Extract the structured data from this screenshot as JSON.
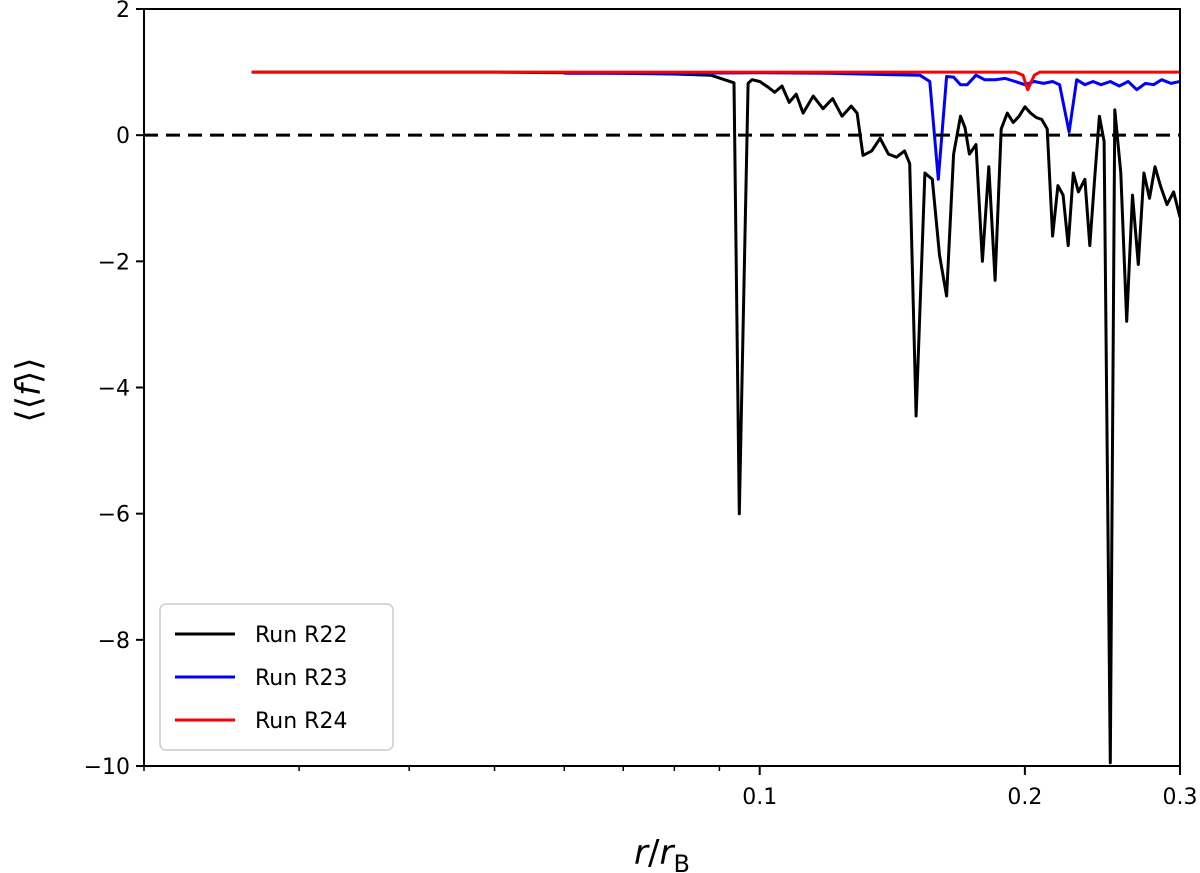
{
  "chart_data": {
    "type": "line",
    "xscale": "log",
    "xlim": [
      0.02,
      0.3
    ],
    "ylim": [
      -10,
      2
    ],
    "xlabel": "r/r_B",
    "ylabel": "⟨⟨f⟩⟩",
    "x_ticks": [
      {
        "value": 0.1,
        "label": "0.1"
      },
      {
        "value": 0.2,
        "label": "0.2"
      },
      {
        "value": 0.3,
        "label": "0.3"
      }
    ],
    "x_minor_ticks": [
      0.02,
      0.03,
      0.04,
      0.05,
      0.06,
      0.07,
      0.08,
      0.09
    ],
    "y_ticks": [
      {
        "value": 2,
        "label": "2"
      },
      {
        "value": 0,
        "label": "0"
      },
      {
        "value": -2,
        "label": "−2"
      },
      {
        "value": -4,
        "label": "−4"
      },
      {
        "value": -6,
        "label": "−6"
      },
      {
        "value": -8,
        "label": "−8"
      },
      {
        "value": -10,
        "label": "−10"
      }
    ],
    "reference_line": {
      "y": 0,
      "style": "dashed",
      "color": "#000000"
    },
    "legend": {
      "position": "lower-left"
    },
    "series": [
      {
        "name": "Run R22",
        "color": "#000000",
        "points": [
          [
            0.0265,
            1.0
          ],
          [
            0.05,
            1.0
          ],
          [
            0.07,
            0.98
          ],
          [
            0.08,
            0.97
          ],
          [
            0.088,
            0.95
          ],
          [
            0.0935,
            0.83
          ],
          [
            0.0948,
            -6.0
          ],
          [
            0.097,
            0.82
          ],
          [
            0.098,
            0.88
          ],
          [
            0.1,
            0.85
          ],
          [
            0.102,
            0.77
          ],
          [
            0.104,
            0.68
          ],
          [
            0.106,
            0.78
          ],
          [
            0.108,
            0.52
          ],
          [
            0.11,
            0.65
          ],
          [
            0.112,
            0.35
          ],
          [
            0.115,
            0.62
          ],
          [
            0.118,
            0.42
          ],
          [
            0.121,
            0.58
          ],
          [
            0.124,
            0.3
          ],
          [
            0.127,
            0.46
          ],
          [
            0.129,
            0.35
          ],
          [
            0.131,
            -0.32
          ],
          [
            0.134,
            -0.25
          ],
          [
            0.137,
            -0.05
          ],
          [
            0.14,
            -0.3
          ],
          [
            0.143,
            -0.35
          ],
          [
            0.146,
            -0.25
          ],
          [
            0.148,
            -0.45
          ],
          [
            0.1505,
            -4.45
          ],
          [
            0.154,
            -0.6
          ],
          [
            0.157,
            -0.7
          ],
          [
            0.16,
            -1.9
          ],
          [
            0.163,
            -2.55
          ],
          [
            0.166,
            -0.3
          ],
          [
            0.169,
            0.3
          ],
          [
            0.171,
            0.12
          ],
          [
            0.173,
            -0.3
          ],
          [
            0.176,
            -0.15
          ],
          [
            0.179,
            -2.0
          ],
          [
            0.182,
            -0.5
          ],
          [
            0.185,
            -2.3
          ],
          [
            0.188,
            0.1
          ],
          [
            0.191,
            0.35
          ],
          [
            0.194,
            0.2
          ],
          [
            0.197,
            0.3
          ],
          [
            0.2,
            0.45
          ],
          [
            0.203,
            0.35
          ],
          [
            0.206,
            0.28
          ],
          [
            0.209,
            0.25
          ],
          [
            0.212,
            0.1
          ],
          [
            0.215,
            -1.6
          ],
          [
            0.218,
            -0.8
          ],
          [
            0.221,
            -0.95
          ],
          [
            0.224,
            -1.75
          ],
          [
            0.227,
            -0.6
          ],
          [
            0.23,
            -0.9
          ],
          [
            0.234,
            -0.7
          ],
          [
            0.237,
            -1.75
          ],
          [
            0.24,
            -0.7
          ],
          [
            0.243,
            0.3
          ],
          [
            0.246,
            -0.1
          ],
          [
            0.25,
            -9.95
          ],
          [
            0.253,
            0.4
          ],
          [
            0.257,
            -0.6
          ],
          [
            0.261,
            -2.95
          ],
          [
            0.265,
            -0.95
          ],
          [
            0.269,
            -2.05
          ],
          [
            0.273,
            -0.6
          ],
          [
            0.277,
            -1.0
          ],
          [
            0.281,
            -0.5
          ],
          [
            0.285,
            -0.8
          ],
          [
            0.29,
            -1.1
          ],
          [
            0.295,
            -0.9
          ],
          [
            0.3,
            -1.3
          ]
        ]
      },
      {
        "name": "Run R23",
        "color": "#0000ff",
        "points": [
          [
            0.06,
            0.98
          ],
          [
            0.08,
            0.98
          ],
          [
            0.1,
            0.99
          ],
          [
            0.12,
            0.98
          ],
          [
            0.14,
            0.96
          ],
          [
            0.152,
            0.95
          ],
          [
            0.156,
            0.85
          ],
          [
            0.1595,
            -0.7
          ],
          [
            0.163,
            0.93
          ],
          [
            0.166,
            0.92
          ],
          [
            0.169,
            0.8
          ],
          [
            0.172,
            0.8
          ],
          [
            0.176,
            0.95
          ],
          [
            0.18,
            0.88
          ],
          [
            0.185,
            0.88
          ],
          [
            0.19,
            0.9
          ],
          [
            0.195,
            0.85
          ],
          [
            0.2,
            0.8
          ],
          [
            0.205,
            0.85
          ],
          [
            0.21,
            0.82
          ],
          [
            0.215,
            0.85
          ],
          [
            0.219,
            0.8
          ],
          [
            0.2245,
            0.05
          ],
          [
            0.229,
            0.88
          ],
          [
            0.234,
            0.8
          ],
          [
            0.239,
            0.85
          ],
          [
            0.244,
            0.8
          ],
          [
            0.25,
            0.85
          ],
          [
            0.256,
            0.78
          ],
          [
            0.262,
            0.85
          ],
          [
            0.268,
            0.72
          ],
          [
            0.274,
            0.82
          ],
          [
            0.28,
            0.8
          ],
          [
            0.286,
            0.88
          ],
          [
            0.293,
            0.82
          ],
          [
            0.3,
            0.85
          ]
        ]
      },
      {
        "name": "Run R24",
        "color": "#ff0000",
        "points": [
          [
            0.0265,
            1.0
          ],
          [
            0.05,
            1.0
          ],
          [
            0.08,
            1.0
          ],
          [
            0.12,
            1.0
          ],
          [
            0.16,
            1.0
          ],
          [
            0.195,
            1.0
          ],
          [
            0.199,
            0.95
          ],
          [
            0.2015,
            0.72
          ],
          [
            0.205,
            0.95
          ],
          [
            0.208,
            1.0
          ],
          [
            0.25,
            1.0
          ],
          [
            0.3,
            1.0
          ]
        ]
      }
    ]
  }
}
